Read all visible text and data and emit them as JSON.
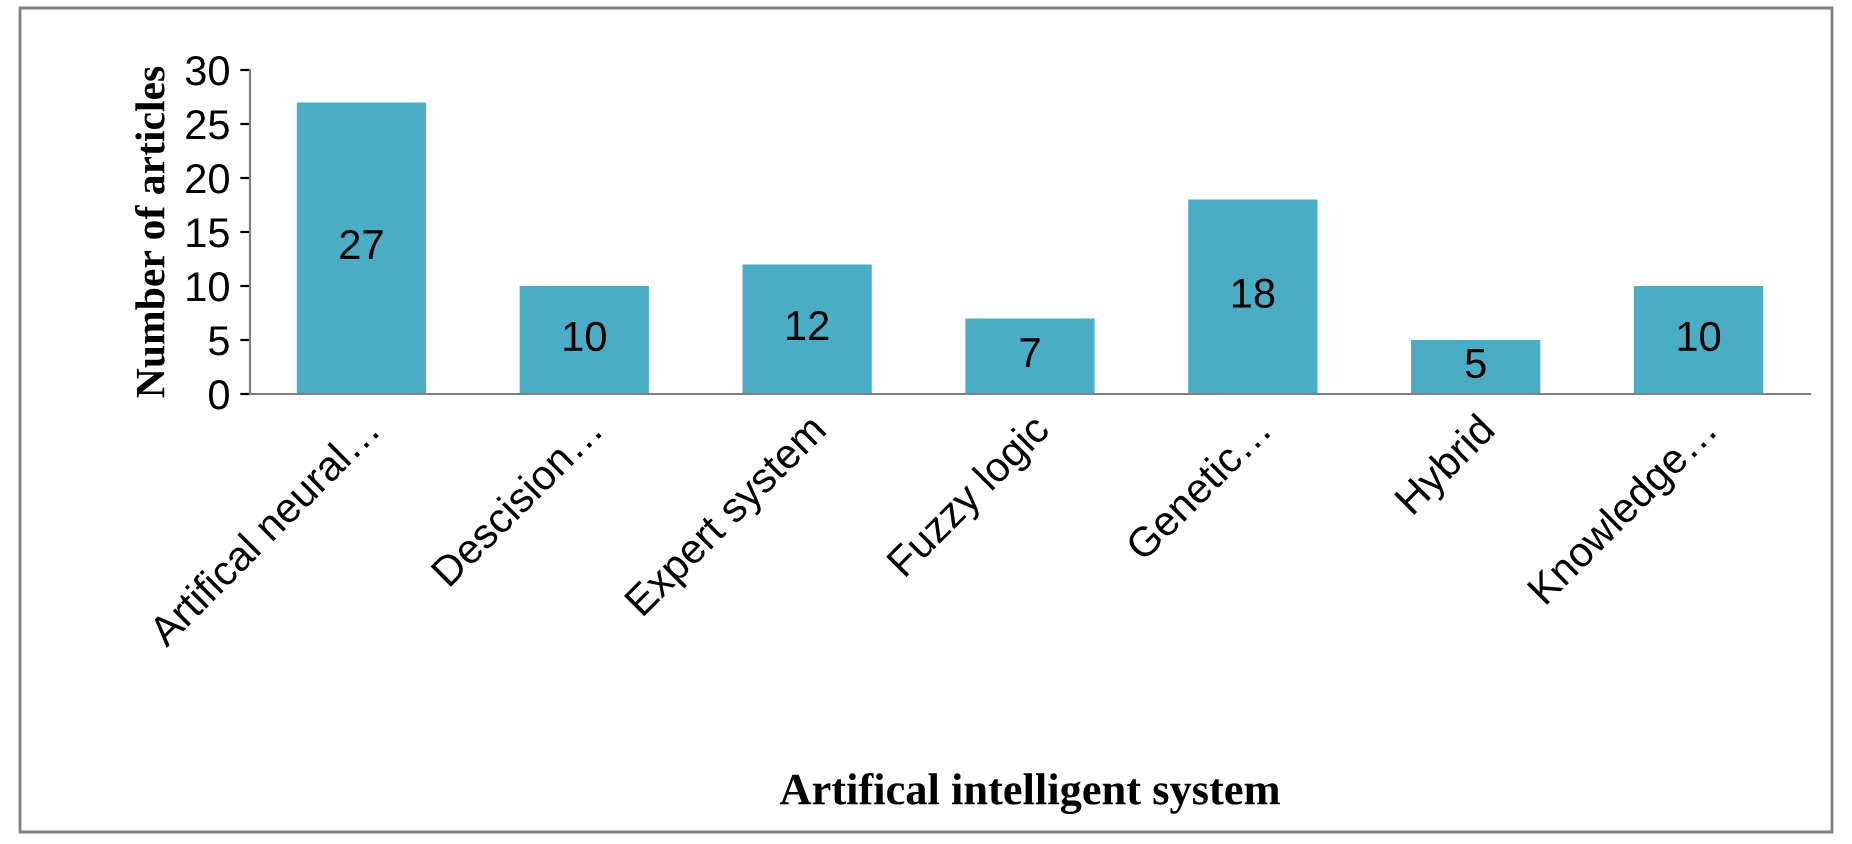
{
  "chart_data": {
    "type": "bar",
    "xlabel": "Artifical intelligent system",
    "ylabel": "Number of articles",
    "categories": [
      "Artifical neural…",
      "Descision…",
      "Expert system",
      "Fuzzy logic",
      "Genetic…",
      "Hybrid",
      "Knowledge…"
    ],
    "values": [
      27,
      10,
      12,
      7,
      18,
      5,
      10
    ],
    "color": "#4bacc6",
    "ylim": [
      0,
      30
    ],
    "yticks": [
      0,
      5,
      10,
      15,
      20,
      25,
      30
    ],
    "grid": false,
    "data_labels": true
  }
}
